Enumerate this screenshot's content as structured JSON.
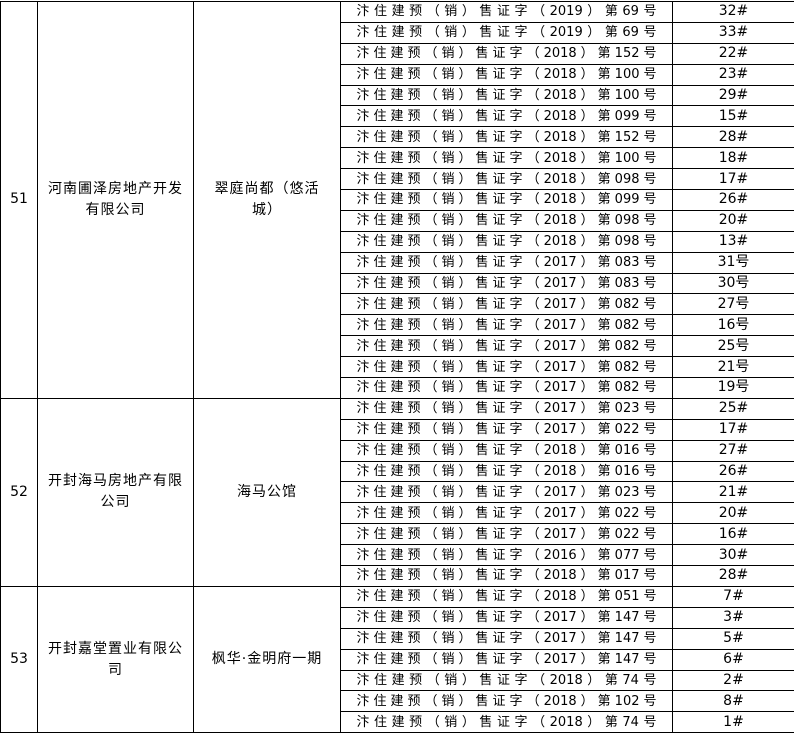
{
  "groups": [
    {
      "no": "51",
      "company": "河南圃泽房地产开发有限公司",
      "project": "翠庭尚都（悠活城）",
      "rows": [
        [
          "汴住建预（销）售证字（2019）第69号",
          "32#"
        ],
        [
          "汴住建预（销）售证字（2019）第69号",
          "33#"
        ],
        [
          "汴住建预（销）售证字（2018）第152号",
          "22#"
        ],
        [
          "汴住建预（销）售证字（2018）第100号",
          "23#"
        ],
        [
          "汴住建预（销）售证字（2018）第100号",
          "29#"
        ],
        [
          "汴住建预（销）售证字（2018）第099号",
          "15#"
        ],
        [
          "汴住建预（销）售证字（2018）第152号",
          "28#"
        ],
        [
          "汴住建预（销）售证字（2018）第100号",
          "18#"
        ],
        [
          "汴住建预（销）售证字（2018）第098号",
          "17#"
        ],
        [
          "汴住建预（销）售证字（2018）第099号",
          "26#"
        ],
        [
          "汴住建预（销）售证字（2018）第098号",
          "20#"
        ],
        [
          "汴住建预（销）售证字（2018）第098号",
          "13#"
        ],
        [
          "汴住建预（销）售证字（2017）第083号",
          "31号"
        ],
        [
          "汴住建预（销）售证字（2017）第083号",
          "30号"
        ],
        [
          "汴住建预（销）售证字（2017）第082号",
          "27号"
        ],
        [
          "汴住建预（销）售证字（2017）第082号",
          "16号"
        ],
        [
          "汴住建预（销）售证字（2017）第082号",
          "25号"
        ],
        [
          "汴住建预（销）售证字（2017）第082号",
          "21号"
        ],
        [
          "汴住建预（销）售证字（2017）第082号",
          "19号"
        ]
      ]
    },
    {
      "no": "52",
      "company": "开封海马房地产有限公司",
      "project": "海马公馆",
      "rows": [
        [
          "汴住建预（销）售证字（2017）第023号",
          "25#"
        ],
        [
          "汴住建预（销）售证字（2017）第022号",
          "17#"
        ],
        [
          "汴住建预（销）售证字（2018）第016号",
          "27#"
        ],
        [
          "汴住建预（销）售证字（2018）第016号",
          "26#"
        ],
        [
          "汴住建预（销）售证字（2017）第023号",
          "21#"
        ],
        [
          "汴住建预（销）售证字（2017）第022号",
          "20#"
        ],
        [
          "汴住建预（销）售证字（2017）第022号",
          "16#"
        ],
        [
          "汴住建预（销）售证字（2016）第077号",
          "30#"
        ],
        [
          "汴住建预（销）售证字（2018）第017号",
          "28#"
        ]
      ]
    },
    {
      "no": "53",
      "company": "开封嘉堂置业有限公司",
      "project": "枫华·金明府一期",
      "rows": [
        [
          "汴住建预（销）售证字（2018）第051号",
          "7#"
        ],
        [
          "汴住建预（销）售证字（2017）第147号",
          "3#"
        ],
        [
          "汴住建预（销）售证字（2017）第147号",
          "5#"
        ],
        [
          "汴住建预（销）售证字（2017）第147号",
          "6#"
        ],
        [
          "汴住建预（销）售证字（2018）第74号",
          "2#"
        ],
        [
          "汴住建预（销）售证字（2018）第102号",
          "8#"
        ],
        [
          "汴住建预（销）售证字（2018）第74号",
          "1#"
        ]
      ]
    }
  ]
}
